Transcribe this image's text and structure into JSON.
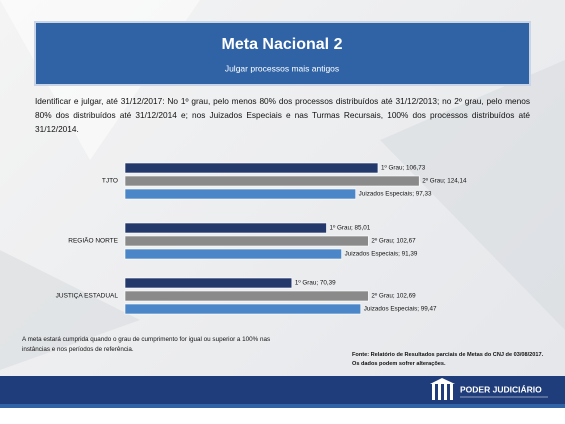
{
  "header": {
    "title": "Meta Nacional 2",
    "subtitle": "Julgar processos mais antigos"
  },
  "description": "Identificar e julgar, até 31/12/2017: No 1º grau, pelo menos 80% dos processos distribuídos até 31/12/2013; no 2º grau, pelo menos 80% dos distribuídos até 31/12/2014 e; nos Juizados Especiais e nas Turmas Recursais, 100% dos processos distribuídos até 31/12/2014.",
  "chart_data": {
    "type": "barh",
    "categories": [
      "TJTO",
      "REGIÃO NORTE",
      "JUSTIÇA ESTADUAL"
    ],
    "series": [
      {
        "color": "#23386b",
        "values": [
          106.73,
          85.01,
          70.39
        ],
        "value_labels": [
          "1º Grau; 106,73",
          "1º Grau; 85,01",
          "1º Grau; 70,39"
        ]
      },
      {
        "color": "#8a8a8a",
        "values": [
          124.14,
          102.67,
          102.69
        ],
        "value_labels": [
          "2º Grau; 124,14",
          "2º Grau; 102,67",
          "2º Grau; 102,69"
        ]
      },
      {
        "color": "#4a86c8",
        "values": [
          97.33,
          91.39,
          99.47
        ],
        "value_labels": [
          "Juizados Especiais; 97,33",
          "Juizados Especiais; 91,39",
          "Juizados Especiais; 99,47"
        ]
      }
    ]
  },
  "note": "A meta estará cumprida quando o grau de cumprimento for igual ou superior a 100% nas instâncias e nos períodos de referência.",
  "source": [
    "Fonte: Relatório de Resultados parciais de Metas do CNJ de 03/08/2017.",
    "Os dados podem sofrer alterações."
  ],
  "footer": {
    "logo": "PODER JUDICIÁRIO"
  }
}
